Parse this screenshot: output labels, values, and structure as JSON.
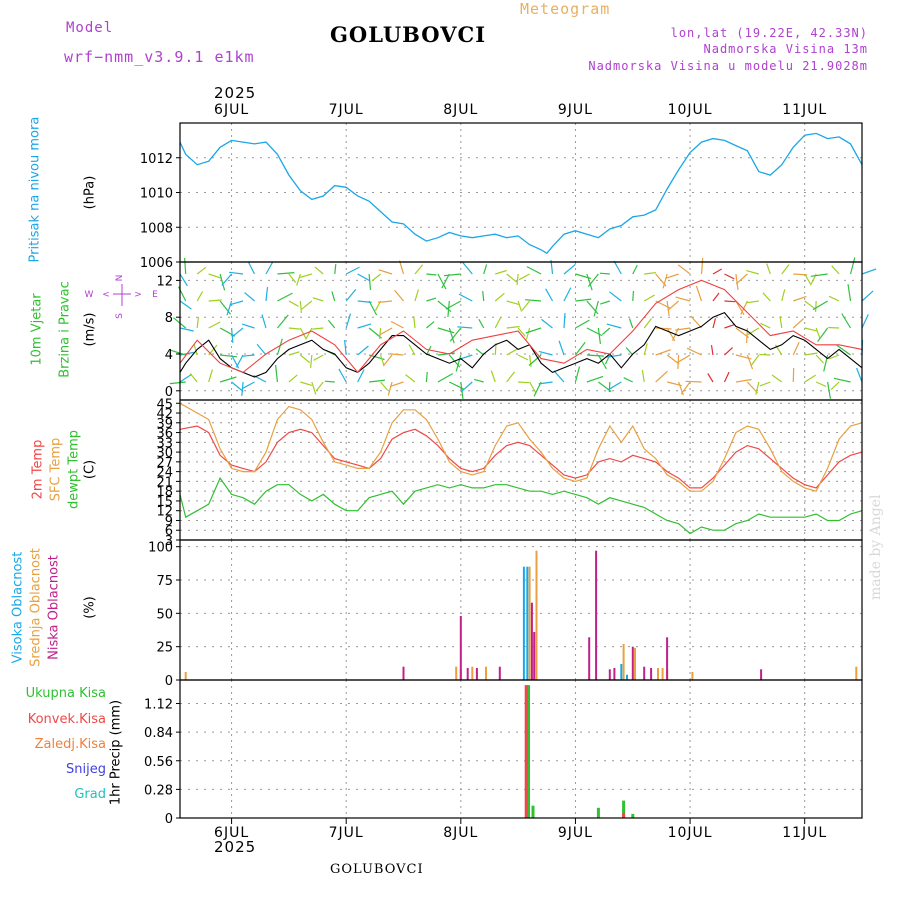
{
  "header": {
    "model_label": "Model",
    "model_name": "wrf−nmm_v3.9.1 e1km",
    "station": "GOLUBOVCI",
    "meteogram": "Meteogram",
    "lonlat": "lon,lat (19.22E, 42.33N)",
    "elevation": "Nadmorska Visina 13m",
    "model_elevation": "Nadmorska Visina u modelu 21.9028m"
  },
  "footer": {
    "station": "GOLUBOVCI",
    "year": "2025",
    "credit": "made by Angel"
  },
  "time_axis": {
    "year": "2025",
    "labels": [
      "6JUL",
      "7JUL",
      "8JUL",
      "9JUL",
      "10JUL",
      "11JUL"
    ]
  },
  "chart_data": [
    {
      "type": "line",
      "title": "Pritisak na nivou mora",
      "ylabel": "(hPa)",
      "ylim": [
        1006,
        1014
      ],
      "yticks": [
        1006,
        1008,
        1010,
        1012
      ],
      "grid": true,
      "series": [
        {
          "name": "Pritisak na nivou mora",
          "color": "#1aa7e8",
          "x": [
            5.55,
            5.6,
            5.7,
            5.8,
            5.9,
            6.0,
            6.1,
            6.2,
            6.3,
            6.4,
            6.5,
            6.6,
            6.7,
            6.8,
            6.9,
            7.0,
            7.1,
            7.2,
            7.3,
            7.4,
            7.5,
            7.6,
            7.7,
            7.8,
            7.9,
            8.0,
            8.1,
            8.2,
            8.3,
            8.4,
            8.5,
            8.6,
            8.7,
            8.75,
            8.8,
            8.9,
            9.0,
            9.1,
            9.2,
            9.3,
            9.4,
            9.5,
            9.6,
            9.7,
            9.8,
            9.9,
            10.0,
            10.1,
            10.2,
            10.3,
            10.4,
            10.5,
            10.6,
            10.7,
            10.8,
            10.9,
            11.0,
            11.1,
            11.2,
            11.3,
            11.4,
            11.5
          ],
          "y": [
            1012.9,
            1012.2,
            1011.6,
            1011.8,
            1012.6,
            1013.0,
            1012.9,
            1012.8,
            1012.9,
            1012.2,
            1011.0,
            1010.1,
            1009.6,
            1009.8,
            1010.4,
            1010.3,
            1009.8,
            1009.5,
            1008.9,
            1008.3,
            1008.2,
            1007.6,
            1007.2,
            1007.4,
            1007.7,
            1007.5,
            1007.4,
            1007.5,
            1007.6,
            1007.4,
            1007.5,
            1007.0,
            1006.7,
            1006.5,
            1006.9,
            1007.6,
            1007.8,
            1007.6,
            1007.4,
            1007.9,
            1008.1,
            1008.6,
            1008.7,
            1009.0,
            1010.2,
            1011.3,
            1012.3,
            1012.9,
            1013.1,
            1013.0,
            1012.7,
            1012.4,
            1011.2,
            1011.0,
            1011.6,
            1012.6,
            1013.3,
            1013.4,
            1013.1,
            1013.2,
            1012.8,
            1011.6
          ]
        }
      ]
    },
    {
      "type": "line",
      "title": "10m Vjetar Brzina i Pravac",
      "ylabel": "(m/s)",
      "ylim": [
        -1,
        14
      ],
      "yticks": [
        0,
        4,
        8,
        12
      ],
      "grid": true,
      "compass": {
        "N": "N",
        "S": "S",
        "E": "E",
        "W": "W",
        "arrow_left": "<",
        "arrow_right": ">"
      },
      "series": [
        {
          "name": "Brzina vjetra",
          "color": "#000000",
          "x": [
            5.55,
            5.6,
            5.7,
            5.8,
            5.9,
            6.0,
            6.1,
            6.2,
            6.3,
            6.4,
            6.5,
            6.6,
            6.7,
            6.8,
            6.9,
            7.0,
            7.1,
            7.2,
            7.3,
            7.4,
            7.5,
            7.6,
            7.7,
            7.8,
            7.9,
            8.0,
            8.1,
            8.2,
            8.3,
            8.4,
            8.5,
            8.6,
            8.7,
            8.8,
            8.9,
            9.0,
            9.1,
            9.2,
            9.3,
            9.4,
            9.5,
            9.6,
            9.7,
            9.8,
            9.9,
            10.0,
            10.1,
            10.2,
            10.3,
            10.4,
            10.5,
            10.6,
            10.7,
            10.8,
            10.9,
            11.0,
            11.1,
            11.2,
            11.3,
            11.4,
            11.5
          ],
          "y": [
            2.0,
            3.0,
            4.5,
            5.5,
            3.5,
            2.5,
            2.0,
            1.5,
            2.0,
            3.5,
            4.5,
            5.0,
            5.5,
            4.5,
            4.0,
            2.5,
            2.0,
            3.0,
            4.5,
            6.0,
            6.0,
            5.0,
            4.0,
            3.5,
            3.0,
            3.5,
            2.5,
            4.0,
            5.0,
            5.5,
            4.5,
            5.0,
            3.0,
            2.0,
            2.5,
            3.0,
            3.5,
            3.0,
            4.0,
            2.5,
            4.0,
            5.0,
            7.0,
            6.5,
            6.0,
            6.5,
            7.0,
            8.0,
            8.5,
            7.0,
            6.5,
            5.5,
            4.5,
            5.0,
            6.0,
            5.5,
            4.5,
            3.5,
            4.5,
            3.5,
            2.5
          ]
        },
        {
          "name": "Udari vjetra",
          "color": "#f04040",
          "x": [
            5.55,
            5.7,
            5.9,
            6.1,
            6.3,
            6.5,
            6.7,
            6.9,
            7.1,
            7.3,
            7.5,
            7.7,
            7.9,
            8.1,
            8.3,
            8.5,
            8.7,
            8.9,
            9.1,
            9.3,
            9.5,
            9.7,
            9.9,
            10.1,
            10.3,
            10.5,
            10.7,
            10.9,
            11.1,
            11.3,
            11.5
          ],
          "y": [
            3.0,
            5.5,
            3.0,
            2.0,
            4.0,
            5.5,
            6.5,
            5.0,
            2.0,
            5.0,
            6.5,
            4.5,
            4.0,
            5.5,
            6.0,
            6.5,
            3.5,
            3.0,
            4.5,
            4.0,
            6.5,
            9.5,
            11.0,
            12.0,
            11.0,
            8.5,
            6.0,
            6.5,
            5.0,
            5.0,
            4.5
          ]
        }
      ]
    },
    {
      "type": "line",
      "ylabel": "(C)",
      "ylim": [
        3,
        46
      ],
      "yticks": [
        3,
        6,
        9,
        12,
        15,
        18,
        21,
        24,
        27,
        30,
        33,
        36,
        39,
        42,
        45
      ],
      "grid": true,
      "series": [
        {
          "name": "2m Temp",
          "color": "#f04848",
          "x": [
            5.55,
            5.7,
            5.8,
            5.9,
            6.0,
            6.1,
            6.2,
            6.3,
            6.4,
            6.5,
            6.6,
            6.7,
            6.8,
            6.9,
            7.0,
            7.1,
            7.2,
            7.3,
            7.4,
            7.5,
            7.6,
            7.7,
            7.8,
            7.9,
            8.0,
            8.1,
            8.2,
            8.3,
            8.4,
            8.5,
            8.6,
            8.7,
            8.8,
            8.9,
            9.0,
            9.1,
            9.2,
            9.3,
            9.4,
            9.5,
            9.6,
            9.7,
            9.8,
            9.9,
            10.0,
            10.1,
            10.2,
            10.3,
            10.4,
            10.5,
            10.6,
            10.7,
            10.8,
            10.9,
            11.0,
            11.1,
            11.2,
            11.3,
            11.4,
            11.5
          ],
          "y": [
            37,
            38,
            36,
            29,
            26,
            25,
            24,
            27,
            33,
            36,
            37,
            36,
            32,
            28,
            27,
            26,
            25,
            28,
            34,
            36,
            37,
            35,
            32,
            28,
            25,
            24,
            25,
            29,
            32,
            33,
            32,
            29,
            26,
            23,
            22,
            23,
            27,
            28,
            27,
            29,
            28,
            27,
            24,
            22,
            19,
            19,
            22,
            26,
            30,
            32,
            31,
            28,
            25,
            22,
            20,
            19,
            23,
            27,
            29,
            30
          ]
        },
        {
          "name": "SFC Temp",
          "color": "#e8a040",
          "x": [
            5.55,
            5.7,
            5.8,
            5.9,
            6.0,
            6.1,
            6.2,
            6.3,
            6.4,
            6.5,
            6.6,
            6.7,
            6.8,
            6.9,
            7.0,
            7.1,
            7.2,
            7.3,
            7.4,
            7.5,
            7.6,
            7.7,
            7.8,
            7.9,
            8.0,
            8.1,
            8.2,
            8.3,
            8.4,
            8.5,
            8.6,
            8.7,
            8.8,
            8.9,
            9.0,
            9.1,
            9.2,
            9.3,
            9.4,
            9.5,
            9.6,
            9.7,
            9.8,
            9.9,
            10.0,
            10.1,
            10.2,
            10.3,
            10.4,
            10.5,
            10.6,
            10.7,
            10.8,
            10.9,
            11.0,
            11.1,
            11.2,
            11.3,
            11.4,
            11.5
          ],
          "y": [
            45,
            42,
            40,
            31,
            25,
            24,
            24,
            30,
            40,
            44,
            43,
            40,
            33,
            27,
            26,
            25,
            25,
            30,
            39,
            43,
            43,
            40,
            34,
            27,
            24,
            23,
            24,
            32,
            38,
            39,
            34,
            30,
            25,
            22,
            21,
            22,
            31,
            38,
            33,
            38,
            31,
            28,
            23,
            21,
            18,
            18,
            21,
            28,
            36,
            38,
            37,
            31,
            24,
            21,
            19,
            18,
            25,
            34,
            38,
            39
          ]
        },
        {
          "name": "dewpt Temp",
          "color": "#30c030",
          "x": [
            5.55,
            5.6,
            5.7,
            5.8,
            5.9,
            6.0,
            6.1,
            6.2,
            6.3,
            6.4,
            6.5,
            6.6,
            6.7,
            6.8,
            6.9,
            7.0,
            7.1,
            7.2,
            7.3,
            7.4,
            7.5,
            7.6,
            7.7,
            7.8,
            7.9,
            8.0,
            8.1,
            8.2,
            8.3,
            8.4,
            8.5,
            8.6,
            8.7,
            8.8,
            8.9,
            9.0,
            9.1,
            9.2,
            9.3,
            9.4,
            9.5,
            9.6,
            9.7,
            9.8,
            9.9,
            10.0,
            10.1,
            10.2,
            10.3,
            10.4,
            10.5,
            10.6,
            10.7,
            10.8,
            10.9,
            11.0,
            11.1,
            11.2,
            11.3,
            11.4,
            11.5
          ],
          "y": [
            17,
            10,
            12,
            14,
            22,
            17,
            16,
            14,
            18,
            20,
            20,
            17,
            15,
            17,
            14,
            12,
            12,
            16,
            17,
            18,
            14,
            18,
            19,
            20,
            19,
            20,
            19,
            19,
            20,
            20,
            19,
            18,
            18,
            17,
            18,
            17,
            16,
            14,
            16,
            15,
            14,
            13,
            11,
            9,
            8,
            5,
            7,
            6,
            6,
            8,
            9,
            11,
            10,
            10,
            10,
            10,
            11,
            9,
            9,
            11,
            12
          ]
        }
      ]
    },
    {
      "type": "bar",
      "ylabel": "(%)",
      "ylim": [
        0,
        105
      ],
      "yticks": [
        0,
        25,
        50,
        75,
        100
      ],
      "grid": true,
      "series": [
        {
          "name": "Visoka Oblacnost",
          "color": "#1aa7e8",
          "x": [
            8.55,
            8.58,
            9.4,
            9.45
          ],
          "y": [
            85,
            85,
            12,
            4
          ]
        },
        {
          "name": "Srednja Oblacnost",
          "color": "#e8a040",
          "x": [
            5.6,
            7.96,
            8.0,
            8.1,
            8.22,
            8.6,
            8.66,
            9.42,
            9.52,
            9.72,
            9.76,
            9.8,
            10.02,
            11.45
          ],
          "y": [
            6,
            10,
            8,
            10,
            10,
            85,
            97,
            27,
            24,
            9,
            9,
            8,
            6,
            10
          ]
        },
        {
          "name": "Niska Oblacnost",
          "color": "#c0208a",
          "x": [
            7.5,
            8.0,
            8.06,
            8.14,
            8.34,
            8.62,
            8.64,
            9.12,
            9.18,
            9.3,
            9.34,
            9.5,
            9.6,
            9.66,
            9.8,
            10.62
          ],
          "y": [
            10,
            48,
            9,
            9,
            10,
            58,
            36,
            32,
            97,
            8,
            9,
            25,
            10,
            9,
            32,
            8
          ]
        }
      ]
    },
    {
      "type": "bar",
      "ylabel": "1hr Precip (mm)",
      "ylim": [
        0,
        1.35
      ],
      "yticks": [
        0,
        0.28,
        0.56,
        0.84,
        1.12
      ],
      "yticklabels": [
        "0",
        "0.28",
        "0.56",
        "0.84",
        "1.12"
      ],
      "grid": true,
      "series": [
        {
          "name": "Ukupna Kisa",
          "color": "#30c030",
          "x": [
            8.59,
            8.63,
            9.2,
            9.42,
            9.5
          ],
          "y": [
            1.3,
            0.12,
            0.1,
            0.17,
            0.04
          ]
        },
        {
          "name": "Konvek.Kisa",
          "color": "#f04848",
          "x": [
            8.57,
            9.42
          ],
          "y": [
            1.3,
            0.05
          ]
        },
        {
          "name": "Zaledj.Kisa",
          "color": "#f08040",
          "x": [],
          "y": []
        },
        {
          "name": "Snijeg",
          "color": "#4040e0",
          "x": [],
          "y": []
        },
        {
          "name": "Grad",
          "color": "#20c0c0",
          "x": [],
          "y": []
        }
      ]
    }
  ],
  "panel_labels": {
    "pressure": "Pritisak na nivou mora",
    "pressure_unit": "(hPa)",
    "wind1": "10m Vjetar",
    "wind2": "Brzina i Pravac",
    "wind_unit": "(m/s)",
    "t2m": "2m Temp",
    "tsfc": "SFC Temp",
    "tdew": "dewpt Temp",
    "temp_unit": "(C)",
    "cloud_high": "Visoka Oblacnost",
    "cloud_mid": "Srednja Oblacnost",
    "cloud_low": "Niska Oblacnost",
    "cloud_unit": "(%)",
    "precip_unit": "1hr Precip (mm)"
  },
  "colors": {
    "pressure": "#1aa7e8",
    "axis": "#000000",
    "grid": "#999999",
    "wind_labels": "#30c030",
    "cloud_high": "#1aa7e8",
    "cloud_mid": "#e8a040",
    "cloud_low": "#c0208a"
  }
}
